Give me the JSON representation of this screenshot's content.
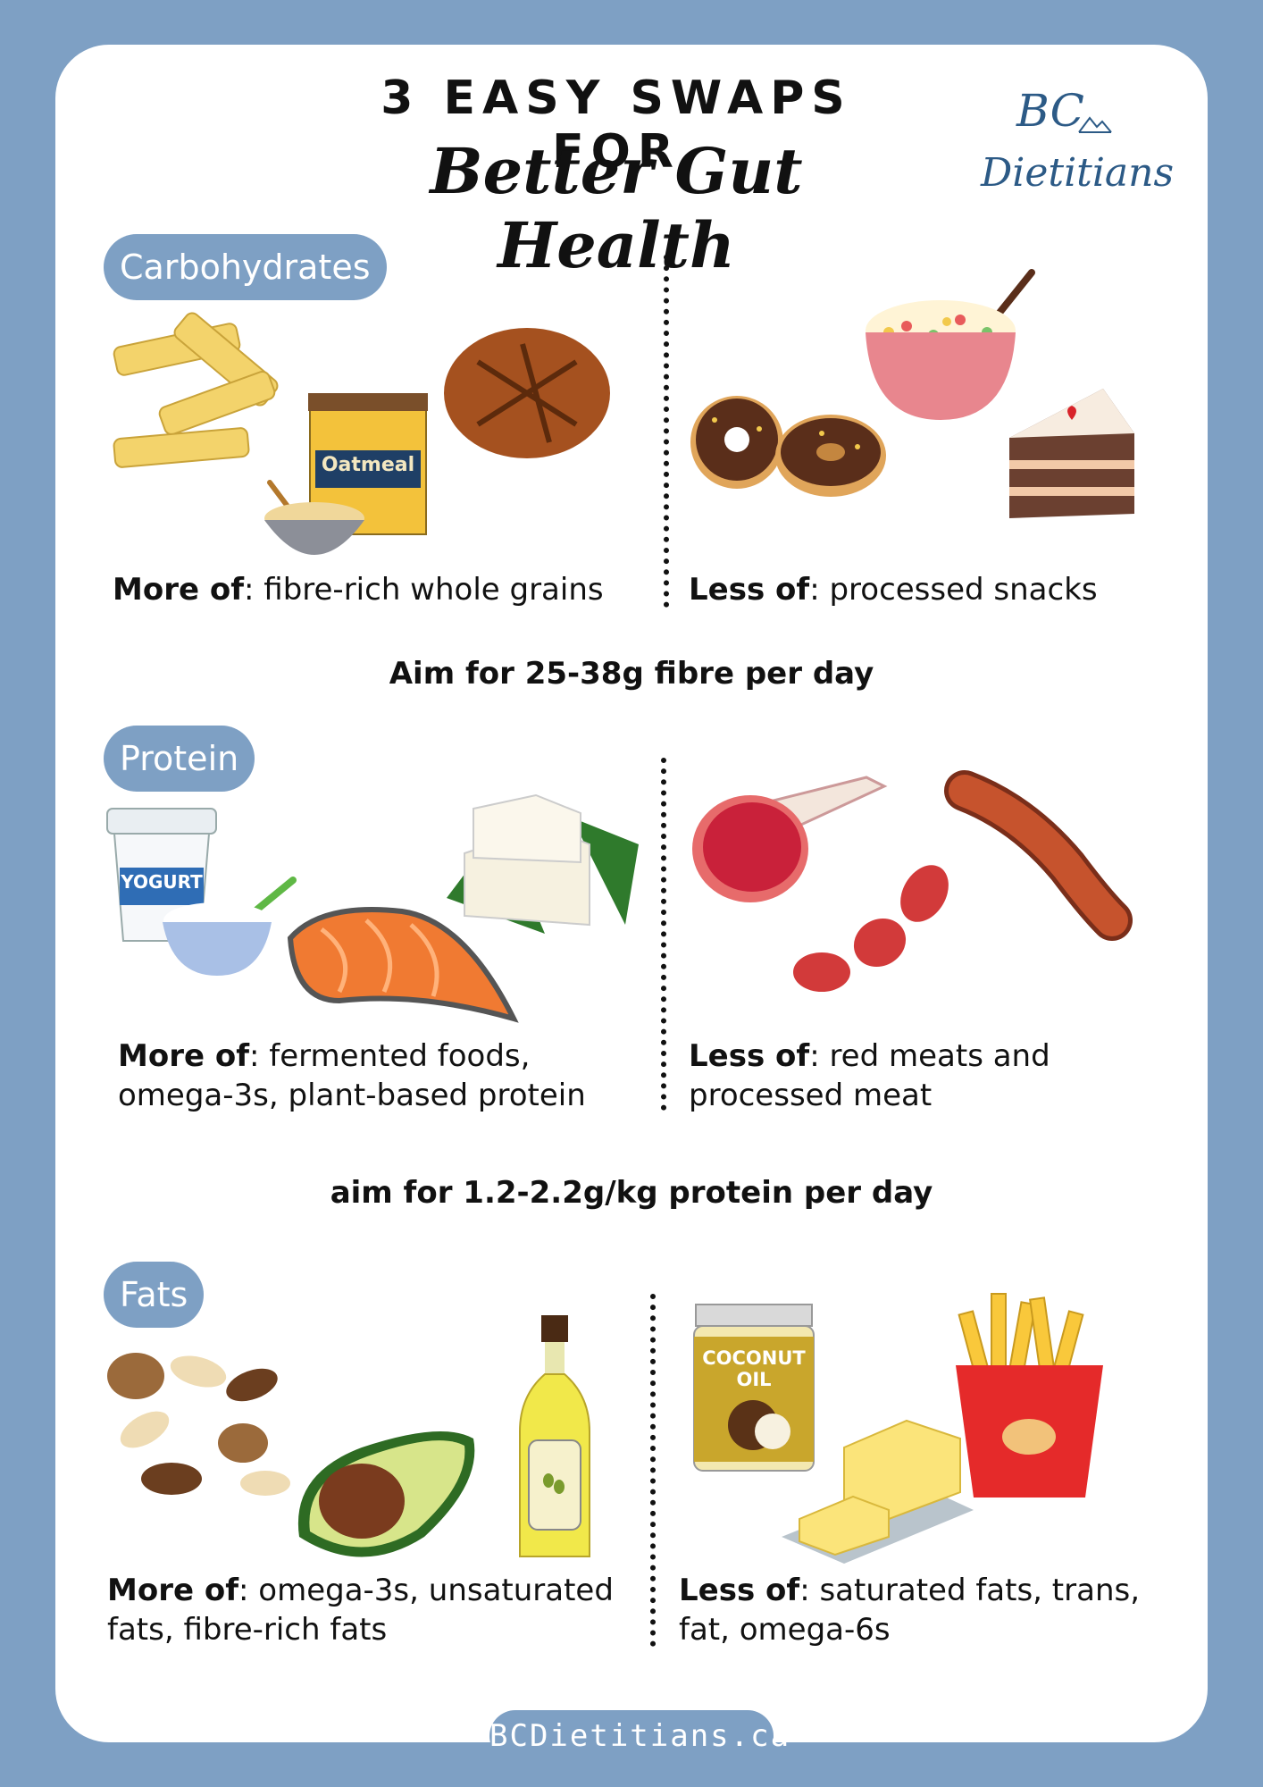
{
  "title": {
    "line1": "3 EASY SWAPS FOR",
    "line2": "Better Gut Health"
  },
  "logo": {
    "line1": "BC",
    "line2": "Dietitians"
  },
  "sections": [
    {
      "label": "Carbohydrates",
      "more": {
        "prefix": "More of",
        "lines": [
          ": fibre-rich whole grains"
        ]
      },
      "less": {
        "prefix": "Less of",
        "lines": [
          ": processed snacks"
        ]
      },
      "aim": "Aim for 25-38g fibre per day",
      "oatmeal_label": "Oatmeal"
    },
    {
      "label": "Protein",
      "more": {
        "prefix": "More of",
        "line1": ": fermented foods,",
        "line2": "omega-3s, plant-based protein"
      },
      "less": {
        "prefix": "Less of",
        "line1": ": red meats and",
        "line2": "processed meat"
      },
      "aim": "aim for 1.2-2.2g/kg protein per day",
      "yogurt_label": "YOGURT"
    },
    {
      "label": "Fats",
      "more": {
        "prefix": "More of",
        "line1": ": omega-3s, unsaturated",
        "line2": "fats, fibre-rich fats"
      },
      "less": {
        "prefix": "Less of",
        "line1": ": saturated fats, trans,",
        "line2": "fat, omega-6s"
      },
      "coconut_label1": "COCONUT",
      "coconut_label2": "OIL"
    }
  ],
  "footer": "BCDietitians.ca",
  "colors": {
    "frame": "#7ea0c4",
    "logo": "#2c5a86",
    "text": "#111111"
  }
}
